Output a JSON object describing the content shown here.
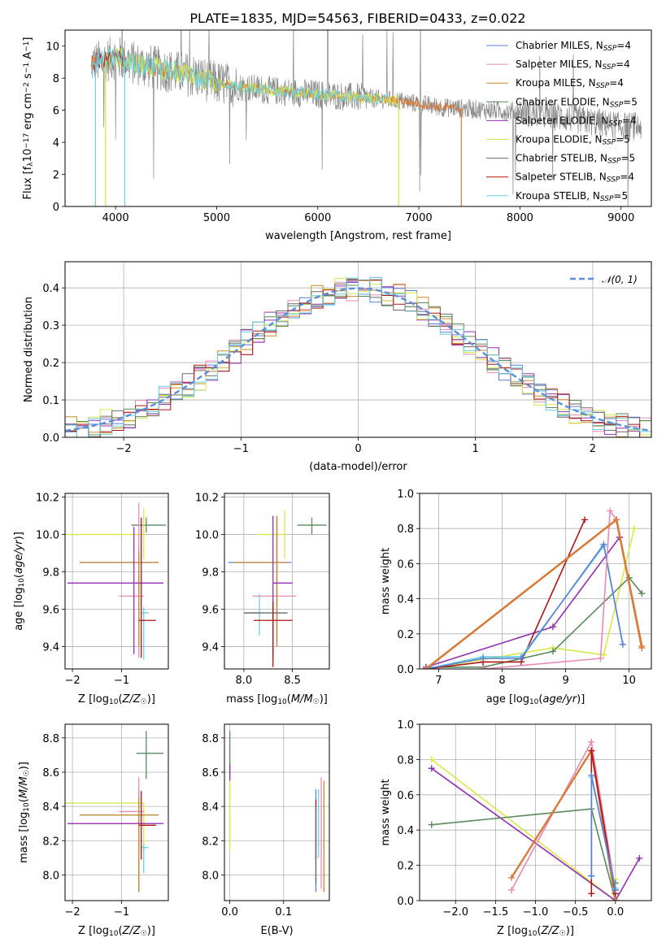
{
  "title": "PLATE=1835, MJD=54563, FIBERID=0433, z=0.022",
  "colors": {
    "Chabrier MILES": "#5a7fd6",
    "Salpeter MILES": "#e889b8",
    "Kroupa MILES": "#c98a2a",
    "Chabrier ELODIE": "#5a8a5a",
    "Salpeter ELODIE": "#9030b0",
    "Kroupa ELODIE": "#d8e84a",
    "Chabrier STELIB": "#6a6a6a",
    "Salpeter STELIB": "#b01414",
    "Kroupa STELIB": "#6ad0e0",
    "normal": "#5a8ed6",
    "data": "#888888",
    "orange": "#d87a3a"
  },
  "chart_data": [
    {
      "id": "spectrum",
      "type": "line",
      "title": "PLATE=1835, MJD=54563, FIBERID=0433, z=0.022",
      "xlabel": "wavelength [Angstrom, rest frame]",
      "ylabel": "Flux [f_λ 10^-17 erg cm^-2 s^-1 A^-1]",
      "xlim": [
        3500,
        9300
      ],
      "ylim": [
        0,
        11
      ],
      "xticks": [
        "4000",
        "5000",
        "6000",
        "7000",
        "8000",
        "9000"
      ],
      "yticks": [
        "0",
        "2",
        "4",
        "6",
        "8",
        "10"
      ],
      "grid": false,
      "legend": "top-right",
      "legend_entries": [
        {
          "model": "Chabrier MILES",
          "nssp": "4"
        },
        {
          "model": "Salpeter MILES",
          "nssp": "4"
        },
        {
          "model": "Kroupa MILES",
          "nssp": "4"
        },
        {
          "model": "Chabrier ELODIE",
          "nssp": "5"
        },
        {
          "model": "Salpeter ELODIE",
          "nssp": "4"
        },
        {
          "model": "Kroupa ELODIE",
          "nssp": "5"
        },
        {
          "model": "Chabrier STELIB",
          "nssp": "5"
        },
        {
          "model": "Salpeter STELIB",
          "nssp": "4"
        },
        {
          "model": "Kroupa STELIB",
          "nssp": "5"
        }
      ],
      "continuum": {
        "x": [
          3760,
          3850,
          4000,
          4200,
          4500,
          4800,
          5000,
          5300,
          5600,
          6000,
          6400,
          6800,
          7200,
          7600,
          8000,
          8500,
          9000
        ],
        "y": [
          8.9,
          9.0,
          9.3,
          8.9,
          8.5,
          8.1,
          7.7,
          7.4,
          7.2,
          7.0,
          6.8,
          6.6,
          6.2,
          6.05,
          5.9,
          5.5,
          5.0
        ]
      },
      "extents": {
        "data": [
          3760,
          9200
        ],
        "MILES": [
          3760,
          7420
        ],
        "ELODIE": [
          3900,
          6800
        ],
        "STELIB": [
          3760,
          8800
        ]
      }
    },
    {
      "id": "residuals",
      "type": "bar",
      "xlabel": "(data-model)/error",
      "ylabel": "Normed distribution",
      "xlim": [
        -2.5,
        2.5
      ],
      "ylim": [
        0,
        0.47
      ],
      "xticks": [
        "−2",
        "−1",
        "0",
        "1",
        "2"
      ],
      "yticks": [
        "0.0",
        "0.1",
        "0.2",
        "0.3",
        "0.4"
      ],
      "grid": true,
      "legend": "top-right",
      "legend_label": "𝒩(0, 1)",
      "series_style": "step histogram, one per model, bin width 0.1"
    },
    {
      "id": "age-vs-Z",
      "type": "scatter",
      "xlabel": "Z [log10(Z/Z☉)]",
      "ylabel": "age  [log10(age/yr)]",
      "xlim": [
        -2.15,
        -0.05
      ],
      "ylim": [
        9.28,
        10.22
      ],
      "xticks": [
        "−2",
        "−1"
      ],
      "yticks": [
        "9.4",
        "9.6",
        "9.8",
        "10.0",
        "10.2"
      ],
      "grid": true,
      "points": [
        {
          "model": "Chabrier ELODIE",
          "x": -0.5,
          "y": 10.05,
          "xerr": [
            0.3,
            0.4
          ],
          "yerr": [
            0.04,
            0.04
          ]
        },
        {
          "model": "Kroupa ELODIE",
          "x": -0.55,
          "y": 10.0,
          "xerr": [
            1.6,
            0.0
          ],
          "yerr": [
            0.13,
            0.14
          ]
        },
        {
          "model": "Chabrier MILES",
          "x": -0.65,
          "y": 9.85,
          "xerr": [
            1.2,
            0.4
          ],
          "yerr": [
            0.45,
            0.06
          ]
        },
        {
          "model": "Salpeter MILES",
          "x": -0.65,
          "y": 9.67,
          "xerr": [
            0.4,
            0.1
          ],
          "yerr": [
            0.33,
            0.5
          ]
        },
        {
          "model": "Kroupa MILES",
          "x": -0.65,
          "y": 9.85,
          "xerr": [
            1.2,
            0.4
          ],
          "yerr": [
            0.45,
            0.06
          ]
        },
        {
          "model": "Salpeter ELODIE",
          "x": -0.75,
          "y": 9.74,
          "xerr": [
            1.35,
            0.6
          ],
          "yerr": [
            0.38,
            0.3
          ]
        },
        {
          "model": "Kroupa STELIB",
          "x": -0.55,
          "y": 9.58,
          "xerr": [
            0.05,
            0.1
          ],
          "yerr": [
            0.25,
            0.03
          ]
        },
        {
          "model": "Salpeter STELIB",
          "x": -0.6,
          "y": 9.54,
          "xerr": [
            0.05,
            0.3
          ],
          "yerr": [
            0.2,
            0.55
          ]
        }
      ]
    },
    {
      "id": "age-vs-mass",
      "type": "scatter",
      "xlabel": "mass [log10(M/M☉)]",
      "ylabel": "",
      "xlim": [
        7.8,
        8.88
      ],
      "ylim": [
        9.28,
        10.22
      ],
      "xticks": [
        "8.0",
        "8.5"
      ],
      "yticks": [
        "9.4",
        "9.6",
        "9.8",
        "10.0",
        "10.2"
      ],
      "grid": true,
      "points": [
        {
          "model": "Chabrier ELODIE",
          "x": 8.7,
          "y": 10.05,
          "xerr": [
            0.15,
            0.15
          ],
          "yerr": [
            0.05,
            0.04
          ]
        },
        {
          "model": "Kroupa ELODIE",
          "x": 8.42,
          "y": 10.0,
          "xerr": [
            0.28,
            0.0
          ],
          "yerr": [
            0.13,
            0.13
          ]
        },
        {
          "model": "Chabrier MILES",
          "x": 8.34,
          "y": 9.85,
          "xerr": [
            0.5,
            0.15
          ],
          "yerr": [
            0.45,
            0.25
          ]
        },
        {
          "model": "Salpeter MILES",
          "x": 8.34,
          "y": 9.67,
          "xerr": [
            0.25,
            0.2
          ],
          "yerr": [
            0.15,
            0.4
          ]
        },
        {
          "model": "Kroupa MILES",
          "x": 8.34,
          "y": 9.85,
          "xerr": [
            0.45,
            0.1
          ],
          "yerr": [
            0.45,
            0.25
          ]
        },
        {
          "model": "Salpeter ELODIE",
          "x": 8.3,
          "y": 9.74,
          "xerr": [
            0.0,
            0.2
          ],
          "yerr": [
            0.4,
            0.36
          ]
        },
        {
          "model": "Kroupa STELIB",
          "x": 8.16,
          "y": 9.58,
          "xerr": [
            0.15,
            0.02
          ],
          "yerr": [
            0.12,
            0.1
          ]
        },
        {
          "model": "Chabrier STELIB",
          "x": 8.3,
          "y": 9.58,
          "xerr": [
            0.3,
            0.15
          ],
          "yerr": [
            0.05,
            0.05
          ]
        },
        {
          "model": "Salpeter STELIB",
          "x": 8.3,
          "y": 9.54,
          "xerr": [
            0.2,
            0.2
          ],
          "yerr": [
            0.25,
            0.1
          ]
        }
      ]
    },
    {
      "id": "weight-vs-age",
      "type": "line",
      "xlabel": "age  [log10(age/yr)]",
      "ylabel": "mass weight",
      "xlim": [
        6.7,
        10.35
      ],
      "ylim": [
        0,
        1.0
      ],
      "xticks": [
        "7",
        "8",
        "9",
        "10"
      ],
      "yticks": [
        "0.0",
        "0.2",
        "0.4",
        "0.6",
        "0.8",
        "1.0"
      ],
      "grid": true,
      "series": [
        {
          "model": "Kroupa ELODIE",
          "x": [
            6.8,
            8.8,
            9.6,
            10.08
          ],
          "y": [
            0.0,
            0.12,
            0.08,
            0.8
          ]
        },
        {
          "model": "Chabrier ELODIE",
          "x": [
            6.8,
            7.7,
            8.8,
            10.0,
            10.2
          ],
          "y": [
            0.01,
            0.01,
            0.1,
            0.52,
            0.43
          ]
        },
        {
          "model": "Salpeter ELODIE",
          "x": [
            6.8,
            8.8,
            9.85
          ],
          "y": [
            0.01,
            0.24,
            0.75
          ]
        },
        {
          "model": "Salpeter STELIB",
          "x": [
            6.8,
            7.7,
            8.3,
            9.3
          ],
          "y": [
            0.0,
            0.04,
            0.04,
            0.85
          ]
        },
        {
          "model": "Kroupa STELIB",
          "x": [
            6.8,
            7.7,
            8.3,
            9.6,
            9.9
          ],
          "y": [
            0.0,
            0.07,
            0.07,
            0.7,
            0.14
          ]
        },
        {
          "model": "Chabrier MILES",
          "x": [
            6.8,
            7.7,
            8.3,
            9.6,
            9.9
          ],
          "y": [
            0.0,
            0.06,
            0.06,
            0.71,
            0.14
          ]
        },
        {
          "model": "Salpeter MILES",
          "x": [
            7.7,
            9.55,
            9.7,
            9.8
          ],
          "y": [
            0.0,
            0.06,
            0.9,
            0.85
          ]
        },
        {
          "model": "Kroupa MILES",
          "x": [
            6.8,
            9.8,
            10.2
          ],
          "y": [
            0.0,
            0.85,
            0.13
          ]
        },
        {
          "model": "Kroupa MILES",
          "x": [
            6.8,
            9.8,
            10.2
          ],
          "y": [
            0.0,
            0.85,
            0.12
          ]
        }
      ]
    },
    {
      "id": "mass-vs-Z",
      "type": "scatter",
      "xlabel": "Z [log10(Z/Z☉)]",
      "ylabel": "mass [log10(M/M☉)]",
      "xlim": [
        -2.15,
        -0.05
      ],
      "ylim": [
        7.85,
        8.88
      ],
      "xticks": [
        "−2",
        "−1"
      ],
      "yticks": [
        "8.0",
        "8.2",
        "8.4",
        "8.6",
        "8.8"
      ],
      "grid": true,
      "points": [
        {
          "model": "Chabrier ELODIE",
          "x": -0.5,
          "y": 8.71,
          "xerr": [
            0.2,
            0.35
          ],
          "yerr": [
            0.15,
            0.13
          ]
        },
        {
          "model": "Kroupa ELODIE",
          "x": -0.55,
          "y": 8.42,
          "xerr": [
            1.6,
            0.0
          ],
          "yerr": [
            0.28,
            0.0
          ]
        },
        {
          "model": "Chabrier MILES",
          "x": -0.65,
          "y": 8.35,
          "xerr": [
            1.2,
            0.4
          ],
          "yerr": [
            0.45,
            0.15
          ]
        },
        {
          "model": "Salpeter MILES",
          "x": -0.65,
          "y": 8.37,
          "xerr": [
            0.4,
            0.1
          ],
          "yerr": [
            0.25,
            0.2
          ]
        },
        {
          "model": "Kroupa MILES",
          "x": -0.65,
          "y": 8.35,
          "xerr": [
            1.2,
            0.4
          ],
          "yerr": [
            0.45,
            0.1
          ]
        },
        {
          "model": "Salpeter ELODIE",
          "x": -0.75,
          "y": 8.3,
          "xerr": [
            1.35,
            0.6
          ],
          "yerr": [
            0.0,
            0.0
          ]
        },
        {
          "model": "Kroupa STELIB",
          "x": -0.55,
          "y": 8.16,
          "xerr": [
            0.05,
            0.1
          ],
          "yerr": [
            0.15,
            0.02
          ]
        },
        {
          "model": "Salpeter STELIB",
          "x": -0.6,
          "y": 8.29,
          "xerr": [
            0.05,
            0.3
          ],
          "yerr": [
            0.2,
            0.2
          ]
        }
      ]
    },
    {
      "id": "mass-vs-ebv",
      "type": "scatter",
      "xlabel": "E(B-V)",
      "ylabel": "",
      "xlim": [
        -0.01,
        0.185
      ],
      "ylim": [
        7.85,
        8.88
      ],
      "xticks": [
        "0.0",
        "0.1"
      ],
      "yticks": [
        "8.0",
        "8.2",
        "8.4",
        "8.6",
        "8.8"
      ],
      "grid": true,
      "points": [
        {
          "model": "Chabrier ELODIE",
          "x": 0.0,
          "y": 8.71,
          "yerr": [
            0.15,
            0.13
          ]
        },
        {
          "model": "Kroupa ELODIE",
          "x": 0.0,
          "y": 8.42,
          "yerr": [
            0.28,
            0.15
          ]
        },
        {
          "model": "Salpeter ELODIE",
          "x": 0.0,
          "y": 8.6,
          "yerr": [
            0.05,
            0.05
          ]
        },
        {
          "model": "Chabrier MILES",
          "x": 0.16,
          "y": 8.35,
          "yerr": [
            0.45,
            0.15
          ]
        },
        {
          "model": "Salpeter MILES",
          "x": 0.17,
          "y": 8.37,
          "yerr": [
            0.45,
            0.2
          ]
        },
        {
          "model": "Kroupa MILES",
          "x": 0.175,
          "y": 8.35,
          "yerr": [
            0.45,
            0.2
          ]
        },
        {
          "model": "Kroupa STELIB",
          "x": 0.165,
          "y": 8.3,
          "yerr": [
            0.2,
            0.2
          ]
        },
        {
          "model": "Salpeter STELIB",
          "x": 0.16,
          "y": 8.29,
          "yerr": [
            0.2,
            0.15
          ]
        },
        {
          "model": "Chabrier STELIB",
          "x": 0.16,
          "y": 8.2,
          "yerr": [
            0.25,
            0.2
          ]
        }
      ]
    },
    {
      "id": "weight-vs-Z",
      "type": "line",
      "xlabel": "Z [log10(Z/Z☉)]",
      "ylabel": "mass weight",
      "xlim": [
        -2.45,
        0.45
      ],
      "ylim": [
        0,
        1.0
      ],
      "xticks": [
        "−2.0",
        "−1.5",
        "−1.0",
        "−0.5",
        "0.0"
      ],
      "yticks": [
        "0.0",
        "0.2",
        "0.4",
        "0.6",
        "0.8",
        "1.0"
      ],
      "grid": true,
      "series": [
        {
          "model": "Kroupa ELODIE",
          "x": [
            -2.3,
            0.0,
            0.0
          ],
          "y": [
            0.8,
            0.0,
            0.12
          ]
        },
        {
          "model": "Salpeter ELODIE",
          "x": [
            -2.3,
            0.0,
            0.3
          ],
          "y": [
            0.75,
            0.0,
            0.24
          ]
        },
        {
          "model": "Chabrier ELODIE",
          "x": [
            -2.3,
            -0.3,
            0.0,
            0.0
          ],
          "y": [
            0.43,
            0.52,
            0.0,
            0.1
          ]
        },
        {
          "model": "Salpeter MILES",
          "x": [
            -1.3,
            -0.3,
            0.0
          ],
          "y": [
            0.06,
            0.9,
            0.06
          ]
        },
        {
          "model": "Kroupa MILES",
          "x": [
            -1.3,
            -0.3,
            0.0
          ],
          "y": [
            0.13,
            0.85,
            0.0
          ]
        },
        {
          "model": "Salpeter STELIB",
          "x": [
            -0.3,
            -0.3,
            0.0
          ],
          "y": [
            0.04,
            0.85,
            0.04
          ]
        },
        {
          "model": "Kroupa STELIB",
          "x": [
            -0.3,
            -0.3,
            0.0
          ],
          "y": [
            0.14,
            0.7,
            0.07
          ]
        },
        {
          "model": "Chabrier MILES",
          "x": [
            -0.3,
            -0.3,
            0.0
          ],
          "y": [
            0.14,
            0.71,
            0.06
          ]
        }
      ]
    }
  ]
}
